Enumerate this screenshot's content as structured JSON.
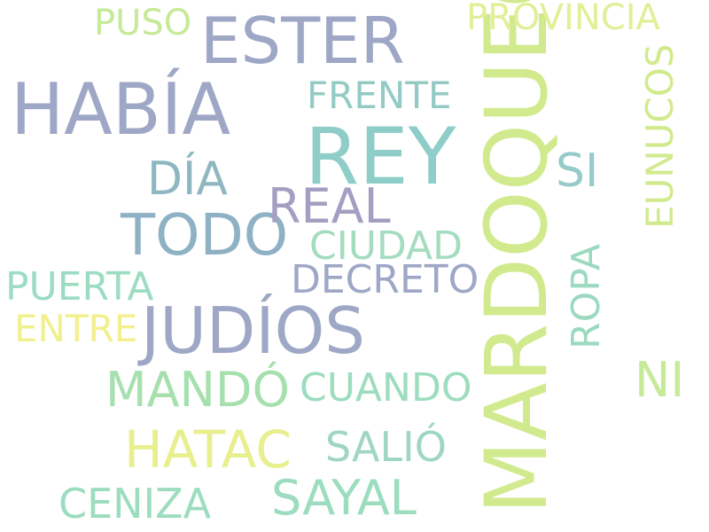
{
  "word_cloud": {
    "words": [
      {
        "text": "MARDOQUEO",
        "color": "#d2ea8e"
      },
      {
        "text": "REY",
        "color": "#8fcdc8"
      },
      {
        "text": "ESTER",
        "color": "#9ea7c6"
      },
      {
        "text": "HABÍA",
        "color": "#9ea7c6"
      },
      {
        "text": "JUDÍOS",
        "color": "#9ea7c6"
      },
      {
        "text": "TODO",
        "color": "#8fb1c4"
      },
      {
        "text": "REAL",
        "color": "#a49fc2"
      },
      {
        "text": "PROVINCIA",
        "color": "#e2ef97"
      },
      {
        "text": "PUSO",
        "color": "#c6ea98"
      },
      {
        "text": "FRENTE",
        "color": "#93cbc4"
      },
      {
        "text": "DÍA",
        "color": "#8fb7c2"
      },
      {
        "text": "SI",
        "color": "#96cbc9"
      },
      {
        "text": "EUNUCOS",
        "color": "#d2ea8e"
      },
      {
        "text": "CIUDAD",
        "color": "#a4dcbf"
      },
      {
        "text": "DECRETO",
        "color": "#9ea7c6"
      },
      {
        "text": "PUERTA",
        "color": "#9cdcc2"
      },
      {
        "text": "ENTRE",
        "color": "#f2ef8e"
      },
      {
        "text": "ROPA",
        "color": "#9cd9c1"
      },
      {
        "text": "MANDÓ",
        "color": "#a6e0ae"
      },
      {
        "text": "CUANDO",
        "color": "#9cdcbf"
      },
      {
        "text": "NI",
        "color": "#c6ea98"
      },
      {
        "text": "HATAC",
        "color": "#e8ef8e"
      },
      {
        "text": "SALIÓ",
        "color": "#9fd6c2"
      },
      {
        "text": "SAYAL",
        "color": "#9cdcbf"
      },
      {
        "text": "CENIZA",
        "color": "#9cdcbf"
      }
    ]
  }
}
